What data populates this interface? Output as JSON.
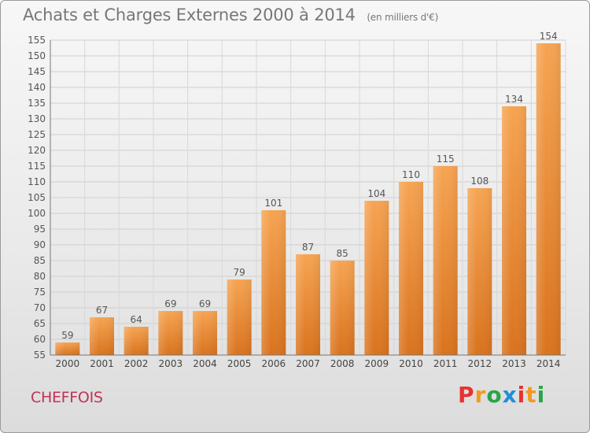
{
  "header": {
    "title": "Achats et Charges Externes 2000 à 2014",
    "subtitle": "(en milliers d'€)"
  },
  "footer": {
    "commune": "CHEFFOIS",
    "brand": "Proxiti",
    "brand_colors": [
      "#e8322e",
      "#f29a1f",
      "#2aa54a",
      "#1f8fd6",
      "#e8322e",
      "#f29a1f",
      "#2aa54a"
    ]
  },
  "chart_data": {
    "type": "bar",
    "title": "Achats et Charges Externes 2000 à 2014",
    "categories": [
      "2000",
      "2001",
      "2002",
      "2003",
      "2004",
      "2005",
      "2006",
      "2007",
      "2008",
      "2009",
      "2010",
      "2011",
      "2012",
      "2013",
      "2014"
    ],
    "values": [
      59,
      67,
      64,
      69,
      69,
      79,
      101,
      87,
      85,
      104,
      110,
      115,
      108,
      134,
      154
    ],
    "ylim": [
      55,
      155
    ],
    "ytick_step": 5,
    "grid": true,
    "bar_color": "#f0a050"
  }
}
